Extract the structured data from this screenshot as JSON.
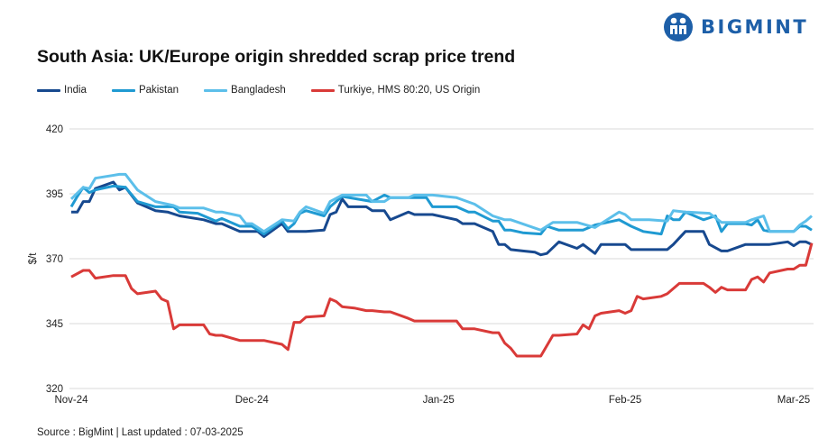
{
  "brand": {
    "name": "BIGMINT",
    "color": "#1d5fa8"
  },
  "chart_data": {
    "type": "line",
    "title": "South Asia: UK/Europe origin shredded scrap price trend",
    "ylabel": "$/t",
    "xlabel": "",
    "ylim": [
      320,
      420
    ],
    "yticks": [
      "420",
      "395",
      "370",
      "345",
      "320"
    ],
    "xlim": [
      "2024-11-01",
      "2025-03-04"
    ],
    "xticks": [
      {
        "label": "Nov-24",
        "date": "2024-11-01"
      },
      {
        "label": "Dec-24",
        "date": "2024-12-01"
      },
      {
        "label": "Jan-25",
        "date": "2025-01-01"
      },
      {
        "label": "Feb-25",
        "date": "2025-02-01"
      },
      {
        "label": "Mar-25",
        "date": "2025-03-01"
      }
    ],
    "grid": "horizontal",
    "legend": "top-left",
    "series": [
      {
        "name": "India",
        "color": "#17498f",
        "points": [
          [
            "2024-11-01",
            388
          ],
          [
            "2024-11-02",
            388
          ],
          [
            "2024-11-03",
            392
          ],
          [
            "2024-11-04",
            392
          ],
          [
            "2024-11-05",
            397
          ],
          [
            "2024-11-08",
            399.5
          ],
          [
            "2024-11-09",
            396.5
          ],
          [
            "2024-11-10",
            397.5
          ],
          [
            "2024-11-12",
            391.5
          ],
          [
            "2024-11-15",
            388.5
          ],
          [
            "2024-11-17",
            388
          ],
          [
            "2024-11-19",
            386.5
          ],
          [
            "2024-11-23",
            385
          ],
          [
            "2024-11-25",
            383.5
          ],
          [
            "2024-11-26",
            383.5
          ],
          [
            "2024-11-29",
            380.5
          ],
          [
            "2024-12-02",
            380.5
          ],
          [
            "2024-12-03",
            378.5
          ],
          [
            "2024-12-06",
            383.5
          ],
          [
            "2024-12-07",
            380.5
          ],
          [
            "2024-12-10",
            380.5
          ],
          [
            "2024-12-13",
            381
          ],
          [
            "2024-12-14",
            387
          ],
          [
            "2024-12-15",
            388
          ],
          [
            "2024-12-16",
            393
          ],
          [
            "2024-12-17",
            390
          ],
          [
            "2024-12-20",
            390
          ],
          [
            "2024-12-21",
            388.5
          ],
          [
            "2024-12-23",
            388.5
          ],
          [
            "2024-12-24",
            385
          ],
          [
            "2024-12-27",
            388
          ],
          [
            "2024-12-28",
            387
          ],
          [
            "2024-12-31",
            387
          ],
          [
            "2025-01-04",
            385
          ],
          [
            "2025-01-05",
            383.5
          ],
          [
            "2025-01-07",
            383.5
          ],
          [
            "2025-01-10",
            380.5
          ],
          [
            "2025-01-11",
            375.5
          ],
          [
            "2025-01-12",
            375.5
          ],
          [
            "2025-01-13",
            373.5
          ],
          [
            "2025-01-15",
            373
          ],
          [
            "2025-01-17",
            372.5
          ],
          [
            "2025-01-18",
            371.5
          ],
          [
            "2025-01-19",
            372
          ],
          [
            "2025-01-21",
            376.5
          ],
          [
            "2025-01-24",
            374
          ],
          [
            "2025-01-25",
            375.5
          ],
          [
            "2025-01-27",
            372
          ],
          [
            "2025-01-28",
            375.5
          ],
          [
            "2025-02-01",
            375.5
          ],
          [
            "2025-02-02",
            373.5
          ],
          [
            "2025-02-08",
            373.5
          ],
          [
            "2025-02-09",
            375.5
          ],
          [
            "2025-02-11",
            380.5
          ],
          [
            "2025-02-14",
            380.5
          ],
          [
            "2025-02-15",
            375.5
          ],
          [
            "2025-02-17",
            373
          ],
          [
            "2025-02-18",
            373
          ],
          [
            "2025-02-21",
            375.5
          ],
          [
            "2025-02-25",
            375.5
          ],
          [
            "2025-02-28",
            376.5
          ],
          [
            "2025-03-01",
            375
          ],
          [
            "2025-03-02",
            376.5
          ],
          [
            "2025-03-03",
            376.5
          ],
          [
            "2025-03-04",
            375.5
          ]
        ]
      },
      {
        "name": "Pakistan",
        "color": "#1f9ad2",
        "points": [
          [
            "2024-11-01",
            390
          ],
          [
            "2024-11-02",
            394
          ],
          [
            "2024-11-03",
            397.5
          ],
          [
            "2024-11-04",
            395.5
          ],
          [
            "2024-11-05",
            396.5
          ],
          [
            "2024-11-08",
            398
          ],
          [
            "2024-11-10",
            397.5
          ],
          [
            "2024-11-12",
            392
          ],
          [
            "2024-11-15",
            390
          ],
          [
            "2024-11-18",
            390
          ],
          [
            "2024-11-19",
            388
          ],
          [
            "2024-11-22",
            387.5
          ],
          [
            "2024-11-25",
            384.5
          ],
          [
            "2024-11-26",
            385.5
          ],
          [
            "2024-11-29",
            382.5
          ],
          [
            "2024-12-01",
            382.5
          ],
          [
            "2024-12-03",
            379.5
          ],
          [
            "2024-12-06",
            384.5
          ],
          [
            "2024-12-07",
            381.5
          ],
          [
            "2024-12-08",
            383.5
          ],
          [
            "2024-12-09",
            387.5
          ],
          [
            "2024-12-10",
            388.5
          ],
          [
            "2024-12-13",
            386.5
          ],
          [
            "2024-12-14",
            390
          ],
          [
            "2024-12-16",
            394
          ],
          [
            "2024-12-21",
            392
          ],
          [
            "2024-12-23",
            394.5
          ],
          [
            "2024-12-24",
            393.5
          ],
          [
            "2024-12-30",
            393.5
          ],
          [
            "2024-12-31",
            390
          ],
          [
            "2025-01-04",
            390
          ],
          [
            "2025-01-06",
            388
          ],
          [
            "2025-01-07",
            388
          ],
          [
            "2025-01-10",
            384.5
          ],
          [
            "2025-01-11",
            384.5
          ],
          [
            "2025-01-12",
            381
          ],
          [
            "2025-01-13",
            381
          ],
          [
            "2025-01-15",
            380
          ],
          [
            "2025-01-18",
            379.5
          ],
          [
            "2025-01-19",
            382.5
          ],
          [
            "2025-01-21",
            381
          ],
          [
            "2025-01-25",
            381
          ],
          [
            "2025-01-27",
            383
          ],
          [
            "2025-01-31",
            385
          ],
          [
            "2025-02-02",
            382.5
          ],
          [
            "2025-02-04",
            380.5
          ],
          [
            "2025-02-07",
            379.5
          ],
          [
            "2025-02-08",
            386.5
          ],
          [
            "2025-02-09",
            385
          ],
          [
            "2025-02-10",
            385
          ],
          [
            "2025-02-11",
            388
          ],
          [
            "2025-02-14",
            385
          ],
          [
            "2025-02-16",
            386.5
          ],
          [
            "2025-02-17",
            380.5
          ],
          [
            "2025-02-18",
            383.5
          ],
          [
            "2025-02-21",
            383.5
          ],
          [
            "2025-02-22",
            383
          ],
          [
            "2025-02-23",
            385
          ],
          [
            "2025-02-24",
            381
          ],
          [
            "2025-02-25",
            380.5
          ],
          [
            "2025-03-01",
            380.5
          ],
          [
            "2025-03-02",
            382.5
          ],
          [
            "2025-03-03",
            382.5
          ],
          [
            "2025-03-04",
            381
          ]
        ]
      },
      {
        "name": "Bangladesh",
        "color": "#5cbfea",
        "points": [
          [
            "2024-11-01",
            393
          ],
          [
            "2024-11-03",
            397.5
          ],
          [
            "2024-11-04",
            397
          ],
          [
            "2024-11-05",
            401
          ],
          [
            "2024-11-09",
            402.5
          ],
          [
            "2024-11-10",
            402.5
          ],
          [
            "2024-11-12",
            396.5
          ],
          [
            "2024-11-15",
            392
          ],
          [
            "2024-11-18",
            390.5
          ],
          [
            "2024-11-19",
            389.5
          ],
          [
            "2024-11-23",
            389.5
          ],
          [
            "2024-11-25",
            388
          ],
          [
            "2024-11-26",
            388
          ],
          [
            "2024-11-29",
            386.5
          ],
          [
            "2024-11-30",
            383.5
          ],
          [
            "2024-12-01",
            383.5
          ],
          [
            "2024-12-03",
            380.5
          ],
          [
            "2024-12-06",
            385
          ],
          [
            "2024-12-08",
            384.5
          ],
          [
            "2024-12-09",
            388
          ],
          [
            "2024-12-10",
            390
          ],
          [
            "2024-12-13",
            387.5
          ],
          [
            "2024-12-14",
            392
          ],
          [
            "2024-12-16",
            394.5
          ],
          [
            "2024-12-20",
            394.5
          ],
          [
            "2024-12-21",
            392
          ],
          [
            "2024-12-23",
            392
          ],
          [
            "2024-12-24",
            393.5
          ],
          [
            "2024-12-27",
            393.5
          ],
          [
            "2024-12-28",
            394.5
          ],
          [
            "2024-12-31",
            394.5
          ],
          [
            "2025-01-04",
            393.5
          ],
          [
            "2025-01-07",
            391
          ],
          [
            "2025-01-10",
            386.5
          ],
          [
            "2025-01-12",
            385
          ],
          [
            "2025-01-13",
            385
          ],
          [
            "2025-01-18",
            381
          ],
          [
            "2025-01-20",
            384
          ],
          [
            "2025-01-24",
            384
          ],
          [
            "2025-01-27",
            382
          ],
          [
            "2025-01-29",
            385
          ],
          [
            "2025-01-31",
            388
          ],
          [
            "2025-02-01",
            387
          ],
          [
            "2025-02-02",
            385
          ],
          [
            "2025-02-05",
            385
          ],
          [
            "2025-02-08",
            384.5
          ],
          [
            "2025-02-09",
            388.5
          ],
          [
            "2025-02-11",
            388
          ],
          [
            "2025-02-15",
            387.5
          ],
          [
            "2025-02-17",
            384
          ],
          [
            "2025-02-21",
            384
          ],
          [
            "2025-02-22",
            385
          ],
          [
            "2025-02-24",
            386.5
          ],
          [
            "2025-02-25",
            380.5
          ],
          [
            "2025-03-01",
            380.5
          ],
          [
            "2025-03-02",
            383
          ],
          [
            "2025-03-03",
            384.5
          ],
          [
            "2025-03-04",
            386.5
          ]
        ]
      },
      {
        "name": "Turkiye, HMS 80:20, US Origin",
        "color": "#d93a38",
        "points": [
          [
            "2024-11-01",
            363
          ],
          [
            "2024-11-03",
            365.5
          ],
          [
            "2024-11-04",
            365.5
          ],
          [
            "2024-11-05",
            362.5
          ],
          [
            "2024-11-08",
            363.5
          ],
          [
            "2024-11-10",
            363.5
          ],
          [
            "2024-11-11",
            358.5
          ],
          [
            "2024-11-12",
            356.5
          ],
          [
            "2024-11-15",
            357.5
          ],
          [
            "2024-11-16",
            354.5
          ],
          [
            "2024-11-17",
            353.5
          ],
          [
            "2024-11-18",
            343
          ],
          [
            "2024-11-19",
            344.5
          ],
          [
            "2024-11-23",
            344.5
          ],
          [
            "2024-11-24",
            341
          ],
          [
            "2024-11-25",
            340.5
          ],
          [
            "2024-11-26",
            340.5
          ],
          [
            "2024-11-29",
            338.5
          ],
          [
            "2024-12-03",
            338.5
          ],
          [
            "2024-12-06",
            337
          ],
          [
            "2024-12-07",
            335
          ],
          [
            "2024-12-08",
            345.5
          ],
          [
            "2024-12-09",
            345.5
          ],
          [
            "2024-12-10",
            347.5
          ],
          [
            "2024-12-13",
            348
          ],
          [
            "2024-12-14",
            354.5
          ],
          [
            "2024-12-15",
            353.5
          ],
          [
            "2024-12-16",
            351.5
          ],
          [
            "2024-12-18",
            351
          ],
          [
            "2024-12-20",
            350
          ],
          [
            "2024-12-21",
            350
          ],
          [
            "2024-12-23",
            349.5
          ],
          [
            "2024-12-24",
            349.5
          ],
          [
            "2024-12-27",
            347
          ],
          [
            "2024-12-28",
            346
          ],
          [
            "2025-01-04",
            346
          ],
          [
            "2025-01-05",
            343
          ],
          [
            "2025-01-07",
            343
          ],
          [
            "2025-01-10",
            341.5
          ],
          [
            "2025-01-11",
            341.5
          ],
          [
            "2025-01-12",
            337.5
          ],
          [
            "2025-01-13",
            335.5
          ],
          [
            "2025-01-14",
            332.5
          ],
          [
            "2025-01-18",
            332.5
          ],
          [
            "2025-01-20",
            340.5
          ],
          [
            "2025-01-21",
            340.5
          ],
          [
            "2025-01-24",
            341
          ],
          [
            "2025-01-25",
            344.5
          ],
          [
            "2025-01-26",
            343
          ],
          [
            "2025-01-27",
            348
          ],
          [
            "2025-01-28",
            349
          ],
          [
            "2025-01-31",
            350
          ],
          [
            "2025-02-01",
            349
          ],
          [
            "2025-02-02",
            350
          ],
          [
            "2025-02-03",
            355.5
          ],
          [
            "2025-02-04",
            354.5
          ],
          [
            "2025-02-07",
            355.5
          ],
          [
            "2025-02-08",
            356.5
          ],
          [
            "2025-02-10",
            360.5
          ],
          [
            "2025-02-14",
            360.5
          ],
          [
            "2025-02-15",
            359
          ],
          [
            "2025-02-16",
            357
          ],
          [
            "2025-02-17",
            359
          ],
          [
            "2025-02-18",
            358
          ],
          [
            "2025-02-21",
            358
          ],
          [
            "2025-02-22",
            362
          ],
          [
            "2025-02-23",
            363
          ],
          [
            "2025-02-24",
            361
          ],
          [
            "2025-02-25",
            364.5
          ],
          [
            "2025-02-28",
            366
          ],
          [
            "2025-03-01",
            366
          ],
          [
            "2025-03-02",
            367.5
          ],
          [
            "2025-03-03",
            367.5
          ],
          [
            "2025-03-04",
            376
          ]
        ]
      }
    ]
  },
  "footer": {
    "source": "Source : BigMint | Last updated : 07-03-2025"
  }
}
